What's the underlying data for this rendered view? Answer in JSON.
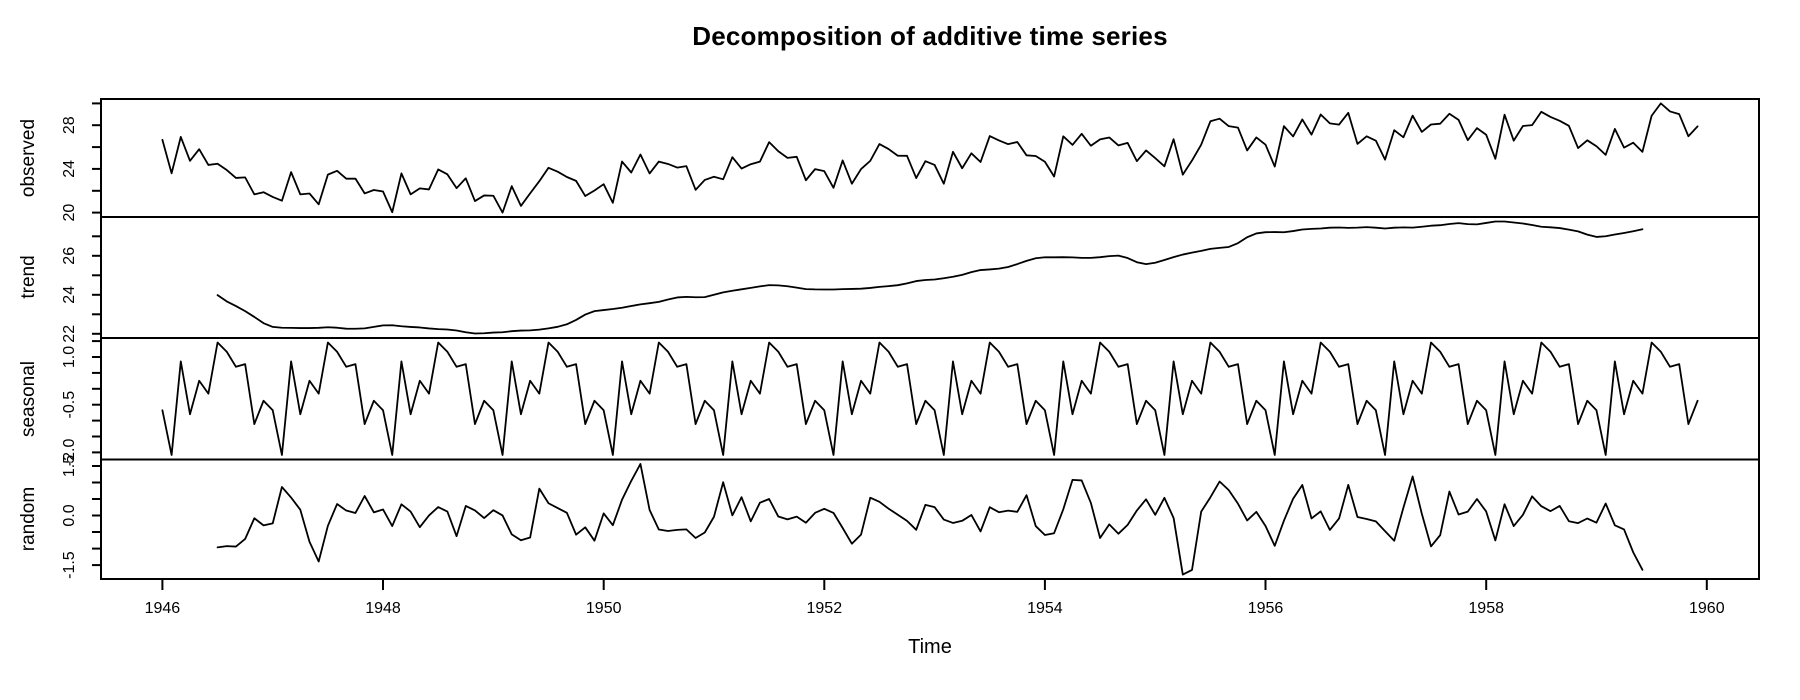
{
  "figure": {
    "title": "Decomposition of additive time series",
    "x_axis_title": "Time",
    "panel_labels": [
      "observed",
      "trend",
      "seasonal",
      "random"
    ]
  },
  "chart_data": {
    "type": "line",
    "title": "Decomposition of additive time series",
    "xlabel": "Time",
    "series_color": "#000000",
    "background_color": "#ffffff",
    "grid": false,
    "x_start_year": 1946,
    "points_per_year": 12,
    "x_tick_years": [
      1946,
      1948,
      1950,
      1952,
      1954,
      1956,
      1958,
      1960
    ],
    "axis_padding_fraction": 0.04,
    "panels": [
      {
        "name": "observed",
        "tick_values": [
          20,
          22,
          24,
          26,
          28,
          30
        ],
        "labeled_ticks": [
          {
            "value": 20,
            "label": "20"
          },
          {
            "value": 24,
            "label": "24"
          },
          {
            "value": 28,
            "label": "28"
          }
        ]
      },
      {
        "name": "trend",
        "tick_values": [
          22,
          23,
          24,
          25,
          26,
          27
        ],
        "labeled_ticks": [
          {
            "value": 22,
            "label": "22"
          },
          {
            "value": 24,
            "label": "24"
          },
          {
            "value": 26,
            "label": "26"
          }
        ]
      },
      {
        "name": "seasonal",
        "tick_values": [
          -2,
          -1.5,
          -1,
          -0.5,
          0,
          0.5,
          1,
          1.5
        ],
        "labeled_ticks": [
          {
            "value": -2,
            "label": "-2.0"
          },
          {
            "value": -0.5,
            "label": "-0.5"
          },
          {
            "value": 1,
            "label": "1.0"
          }
        ]
      },
      {
        "name": "random",
        "tick_values": [
          -1.5,
          -1,
          -0.5,
          0,
          0.5,
          1,
          1.5
        ],
        "labeled_ticks": [
          {
            "value": -1.5,
            "label": "-1.5"
          },
          {
            "value": 0,
            "label": "0.0"
          },
          {
            "value": 1.5,
            "label": "1.5"
          }
        ]
      }
    ],
    "observed": [
      26.663,
      23.598,
      26.931,
      24.74,
      25.806,
      24.364,
      24.477,
      23.901,
      23.175,
      23.227,
      21.672,
      21.87,
      21.439,
      21.089,
      23.709,
      21.669,
      21.752,
      20.761,
      23.479,
      23.824,
      23.105,
      23.11,
      21.759,
      22.073,
      21.937,
      20.035,
      23.59,
      21.672,
      22.222,
      22.123,
      23.95,
      23.504,
      22.238,
      23.142,
      21.059,
      21.573,
      21.548,
      20.0,
      22.424,
      20.615,
      21.761,
      22.874,
      24.104,
      23.748,
      23.262,
      22.907,
      21.519,
      22.025,
      22.604,
      20.894,
      24.677,
      23.673,
      25.32,
      23.583,
      24.671,
      24.454,
      24.122,
      24.252,
      22.084,
      22.991,
      23.287,
      23.049,
      25.076,
      24.037,
      24.43,
      24.667,
      26.451,
      25.618,
      25.014,
      25.11,
      22.964,
      23.981,
      23.798,
      22.27,
      24.775,
      22.646,
      23.988,
      24.737,
      26.276,
      25.816,
      25.21,
      25.199,
      23.162,
      24.707,
      24.364,
      22.644,
      25.565,
      24.062,
      25.431,
      24.635,
      27.009,
      26.606,
      26.268,
      26.462,
      25.246,
      25.18,
      24.657,
      23.304,
      26.982,
      26.199,
      27.21,
      26.122,
      26.706,
      26.878,
      26.152,
      26.379,
      24.712,
      25.688,
      24.99,
      24.239,
      26.721,
      23.475,
      24.767,
      26.219,
      28.361,
      28.599,
      27.914,
      27.784,
      25.693,
      26.881,
      26.217,
      24.218,
      27.914,
      26.975,
      28.527,
      27.139,
      28.982,
      28.169,
      28.056,
      29.136,
      26.291,
      26.987,
      26.589,
      24.848,
      27.543,
      26.896,
      28.878,
      27.39,
      28.065,
      28.141,
      29.048,
      28.484,
      26.634,
      27.735,
      27.132,
      24.924,
      28.963,
      26.589,
      27.931,
      28.009,
      29.229,
      28.759,
      28.405,
      27.945,
      25.912,
      26.619,
      26.076,
      25.286,
      27.66,
      25.951,
      26.398,
      25.565,
      28.865,
      30.0,
      29.261,
      29.012,
      26.992,
      27.897
    ],
    "seasonal_figure_by_month": [
      -0.6772,
      -2.083,
      0.8625,
      -0.8017,
      0.2517,
      -0.1533,
      1.456,
      1.1646,
      0.6916,
      0.7752,
      -1.1098,
      -0.3768
    ],
    "trend_method": "centered 2x12 moving average (undefined for first and last 6 months)",
    "random_method": "observed - trend - seasonal"
  }
}
